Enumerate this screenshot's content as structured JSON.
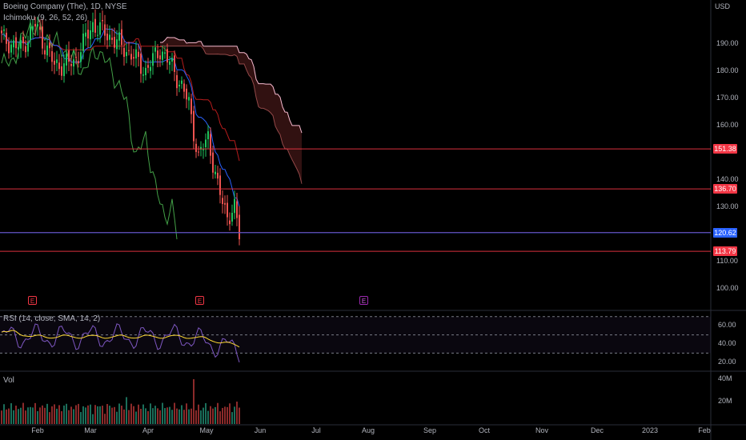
{
  "header": {
    "symbol_title": "Boeing Company (The), 1D, NYSE",
    "ichimoku_label": "Ichimoku (9, 26, 52, 26)"
  },
  "price_axis": {
    "currency": "USD",
    "ticks": [
      "190.00",
      "180.00",
      "170.00",
      "160.00",
      "140.00",
      "130.00",
      "110.00",
      "100.00"
    ],
    "tick_values": [
      190,
      180,
      170,
      160,
      140,
      130,
      110,
      100
    ],
    "range": [
      93,
      206
    ]
  },
  "levels": [
    {
      "label": "151.38",
      "value": 151.38,
      "color": "#f23645"
    },
    {
      "label": "136.70",
      "value": 136.7,
      "color": "#f23645"
    },
    {
      "label": "120.70",
      "value": 120.7,
      "color": "#f23645"
    },
    {
      "label": "120.62",
      "value": 120.62,
      "color": "#2962ff"
    },
    {
      "label": "113.79",
      "value": 113.79,
      "color": "#f23645"
    }
  ],
  "earnings_markers": [
    {
      "label": "E",
      "month": "Jan",
      "future": false
    },
    {
      "label": "E",
      "month": "Apr",
      "future": false
    },
    {
      "label": "E",
      "month": "Jul",
      "future": true
    }
  ],
  "rsi": {
    "label": "RSI (14, close, SMA, 14, 2)",
    "ticks": [
      "60.00",
      "40.00",
      "20.00"
    ],
    "tick_values": [
      60,
      40,
      20
    ],
    "range": [
      12,
      75
    ],
    "bands": [
      70,
      50,
      30
    ]
  },
  "volume": {
    "label": "Vol",
    "ticks": [
      "40M",
      "20M"
    ],
    "tick_values": [
      40,
      20
    ],
    "range": [
      0,
      45
    ]
  },
  "time_axis": {
    "labels": [
      "Feb",
      "Mar",
      "Apr",
      "May",
      "Jun",
      "Jul",
      "Aug",
      "Sep",
      "Oct",
      "Nov",
      "Dec",
      "2023",
      "Feb"
    ]
  },
  "colors": {
    "up": "#26a69a",
    "up_candle": "#22c55e",
    "down": "#ef5350",
    "tenkan": "#2962ff",
    "kijun": "#b71c1c",
    "lagging": "#43a047",
    "cloud_upper": "#f8bbd0",
    "cloud_fill": "#3a1414",
    "rsi": "#7e57c2",
    "rsi_ma": "#fdd835"
  }
}
